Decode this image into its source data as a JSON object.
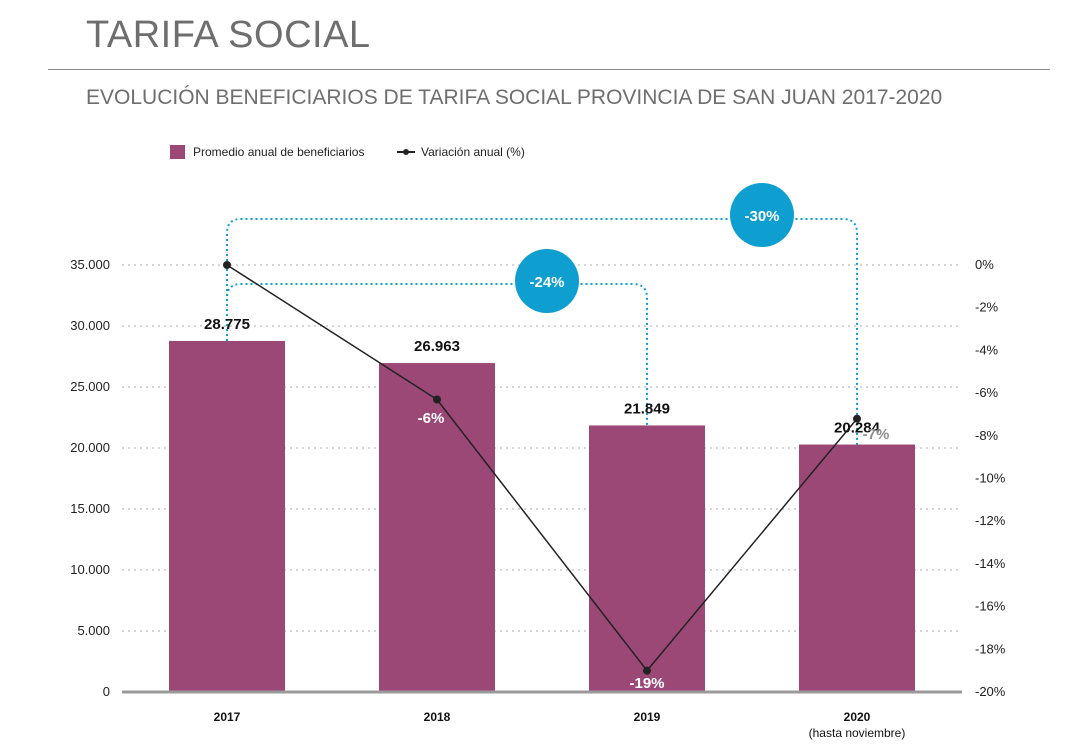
{
  "header": {
    "title": "TARIFA SOCIAL",
    "subtitle": "EVOLUCIÓN BENEFICIARIOS DE TARIFA SOCIAL PROVINCIA DE SAN JUAN 2017-2020"
  },
  "legend": {
    "bar_label": "Promedio anual de beneficiarios",
    "line_label": "Variación anual (%)"
  },
  "colors": {
    "bar": "#9b4876",
    "line": "#222222",
    "accent": "#0e9fd0",
    "muted_label": "#8f8f8f"
  },
  "chart_data": {
    "type": "bar",
    "categories": [
      "2017",
      "2018",
      "2019",
      "2020"
    ],
    "category_sublabels": [
      "",
      "",
      "",
      "(hasta noviembre)"
    ],
    "series": [
      {
        "name": "Promedio anual de beneficiarios",
        "type": "bar",
        "axis": "left",
        "values": [
          28775,
          26963,
          21849,
          20284
        ],
        "value_labels": [
          "28.775",
          "26.963",
          "21.849",
          "20.284"
        ]
      },
      {
        "name": "Variación anual (%)",
        "type": "line",
        "axis": "right",
        "values": [
          0,
          -6.3,
          -19,
          -7.2
        ],
        "value_labels": [
          "",
          "-6%",
          "-19%",
          "-7%"
        ]
      }
    ],
    "left_axis": {
      "min": 0,
      "max": 35000,
      "ticks": [
        0,
        5000,
        10000,
        15000,
        20000,
        25000,
        30000,
        35000
      ],
      "tick_labels": [
        "0",
        "5.000",
        "10.000",
        "15.000",
        "20.000",
        "25.000",
        "30.000",
        "35.000"
      ]
    },
    "right_axis": {
      "min": -20,
      "max": 0,
      "ticks": [
        0,
        -2,
        -4,
        -6,
        -8,
        -10,
        -12,
        -14,
        -16,
        -18,
        -20
      ],
      "tick_labels": [
        "0%",
        "-2%",
        "-4%",
        "-6%",
        "-8%",
        "-10%",
        "-12%",
        "-14%",
        "-16%",
        "-18%",
        "-20%"
      ]
    },
    "grid": true,
    "legend_position": "top-left",
    "annotations": [
      {
        "from": "2017",
        "to": "2019",
        "label": "-24%"
      },
      {
        "from": "2017",
        "to": "2020",
        "label": "-30%"
      }
    ]
  }
}
